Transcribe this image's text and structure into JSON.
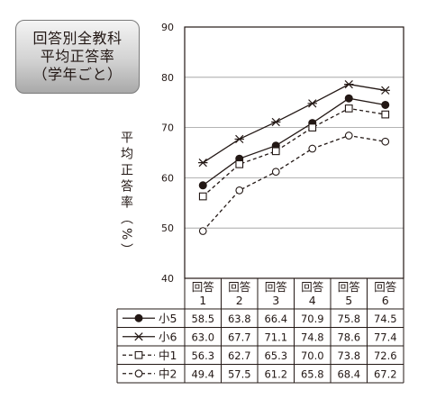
{
  "title_lines": [
    "回答別全教科",
    "平均正答率",
    "（学年ごと）"
  ],
  "chart_data": {
    "type": "line",
    "ylabel": "平均正答率（%）",
    "ylim": [
      40,
      90
    ],
    "yticks": [
      40,
      50,
      60,
      70,
      80,
      90
    ],
    "categories": [
      "回答\n1",
      "回答\n2",
      "回答\n3",
      "回答\n4",
      "回答\n5",
      "回答\n6"
    ],
    "grid": true,
    "legend": "table-below",
    "series": [
      {
        "name": "小5",
        "marker": "filled-circle",
        "line": "solid",
        "values": [
          58.5,
          63.8,
          66.4,
          70.9,
          75.8,
          74.5
        ]
      },
      {
        "name": "小6",
        "marker": "asterisk",
        "line": "solid",
        "values": [
          63.0,
          67.7,
          71.1,
          74.8,
          78.6,
          77.4
        ]
      },
      {
        "name": "中1",
        "marker": "open-square",
        "line": "dashed",
        "values": [
          56.3,
          62.7,
          65.3,
          70.0,
          73.8,
          72.6
        ]
      },
      {
        "name": "中2",
        "marker": "open-circle",
        "line": "dashed",
        "values": [
          49.4,
          57.5,
          61.2,
          65.8,
          68.4,
          67.2
        ]
      }
    ]
  }
}
